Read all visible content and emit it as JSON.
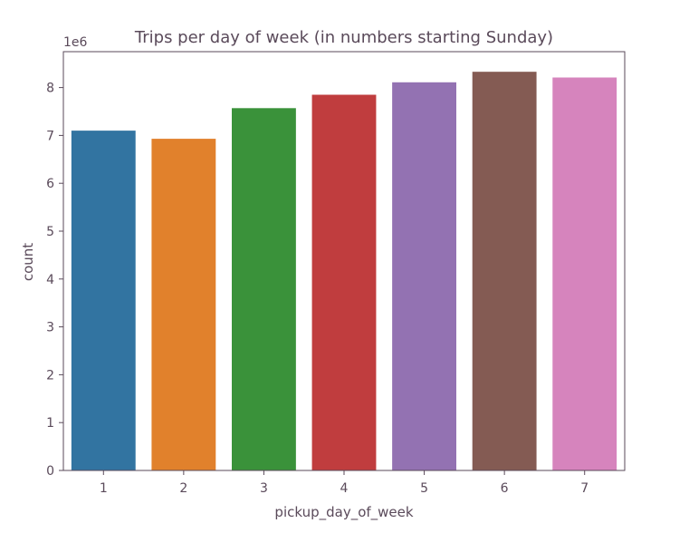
{
  "chart_data": {
    "type": "bar",
    "title": "Trips per day of week (in numbers starting Sunday)",
    "xlabel": "pickup_day_of_week",
    "ylabel": "count",
    "y_offset_label": "1e6",
    "categories": [
      "1",
      "2",
      "3",
      "4",
      "5",
      "6",
      "7"
    ],
    "values": [
      7.1,
      6.93,
      7.57,
      7.85,
      8.11,
      8.33,
      8.21
    ],
    "colors": [
      "#3274a1",
      "#e1812c",
      "#3a923a",
      "#c03d3e",
      "#9372b2",
      "#845b53",
      "#d684bd"
    ],
    "yticks": [
      "0",
      "1",
      "2",
      "3",
      "4",
      "5",
      "6",
      "7",
      "8"
    ],
    "ylim": [
      0,
      8.75
    ],
    "grid": false,
    "legend": "none"
  }
}
